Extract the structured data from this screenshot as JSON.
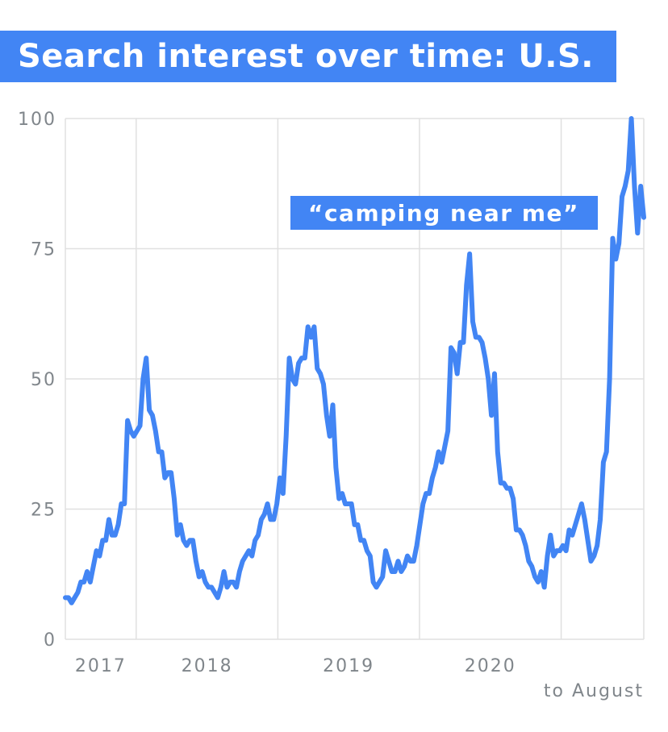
{
  "chart_data": {
    "type": "line",
    "title": "Search interest over time: U.S.",
    "annotation": "“camping near me”",
    "x_start": "2016-07",
    "x_end": "2020-08",
    "x_tick_labels": [
      "2017",
      "2018",
      "2019",
      "2020"
    ],
    "x_sub_label": "to August",
    "y_tick_labels": [
      "0",
      "25",
      "50",
      "75",
      "100"
    ],
    "ylim": [
      0,
      100
    ],
    "grid": true,
    "colors": {
      "line": "#4285f4",
      "grid": "#e0e0e0",
      "title_bg": "#4285f4",
      "tick_text": "#80868b"
    },
    "series": [
      {
        "values": [
          8,
          8,
          7,
          8,
          9,
          11,
          11,
          13,
          11,
          14,
          17,
          16,
          19,
          19,
          23,
          20,
          20,
          22,
          26,
          26,
          42,
          40,
          39,
          40,
          41,
          50,
          54,
          44,
          43,
          40,
          36,
          36,
          31,
          32,
          32,
          27,
          20,
          22,
          19,
          18,
          19,
          19,
          15,
          12,
          13,
          11,
          10,
          10,
          9,
          8,
          10,
          13,
          10,
          11,
          11,
          10,
          13,
          15,
          16,
          17,
          16,
          19,
          20,
          23,
          24,
          26,
          23,
          23,
          26,
          31,
          28,
          39,
          54,
          50,
          49,
          53,
          54,
          54,
          60,
          58,
          60,
          52,
          51,
          49,
          43,
          39,
          45,
          33,
          27,
          28,
          26,
          26,
          26,
          22,
          22,
          19,
          19,
          17,
          16,
          11,
          10,
          11,
          12,
          17,
          15,
          13,
          13,
          15,
          13,
          14,
          16,
          15,
          15,
          18,
          22,
          26,
          28,
          28,
          31,
          33,
          36,
          34,
          37,
          40,
          56,
          55,
          51,
          57,
          57,
          68,
          74,
          61,
          58,
          58,
          57,
          54,
          50,
          43,
          51,
          36,
          30,
          30,
          29,
          29,
          27,
          21,
          21,
          20,
          18,
          15,
          14,
          12,
          11,
          13,
          10,
          16,
          20,
          16,
          17,
          17,
          18,
          17,
          21,
          20,
          22,
          24,
          26,
          23,
          19,
          15,
          16,
          18,
          23,
          34,
          36,
          50,
          77,
          73,
          76,
          85,
          87,
          90,
          100,
          87,
          78,
          87,
          81
        ]
      }
    ]
  }
}
